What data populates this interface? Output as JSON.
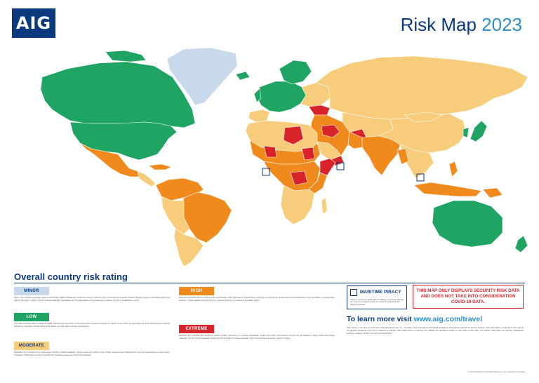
{
  "header": {
    "logo": "AIG",
    "title_main": "Risk Map",
    "title_year": "2023"
  },
  "section_heading": "Overall country risk rating",
  "legend": {
    "minor": {
      "label": "MINOR",
      "color": "#c7d9ea",
      "text_color": "#0b3a7e",
      "description": "Minor risk countries generally have a functionally stable political and economic system, with low risk of criminal and security threats. Routine travel is generally carried out without disruption. Visitors should observe standard precautions and remain aware of local laws and customs. Access to healthcare is good."
    },
    "low": {
      "label": "LOW",
      "color": "#1fa463",
      "text_color": "#ffffff",
      "description": "Low risk countries have a relatively stable political and economic environment with occasional periods of unrest. Crime rates are generally low and infrastructure functions effectively. Travellers should follow local advice and take basic security precautions."
    },
    "moderate": {
      "label": "MODERATE",
      "color": "#f7cd7b",
      "text_color": "#0b3a7e",
      "description": "Moderate risk countries may experience periodic political instability, social unrest and violent crime. Public services and infrastructure may be inconsistent in some areas. Travellers should plan journeys carefully and maintain awareness of the local situation."
    },
    "high": {
      "label": "HIGH",
      "color": "#f08a1c",
      "text_color": "#ffffff",
      "description": "High risk countries have a weak security environment, with high rates of violent crime, terrorism or civil unrest. Government and infrastructure may be unable to provide basic services. Travel requires careful planning, close monitoring of events and specialist advice."
    },
    "extreme": {
      "label": "EXTREME",
      "color": "#d8232a",
      "text_color": "#ffffff",
      "description": "Extreme risk countries are subject to armed conflict, terrorism or a severe breakdown of law and order. Government control may be absent in large areas and foreign nationals may be directly targeted. Travel should be deferred unless essential, with comprehensive security support in place."
    }
  },
  "maritime_piracy": {
    "label": "MARITIME PIRACY",
    "description": "Areas of concern in which acts of robbery or criminal violence are carried out against a ship or vessel for political and/or financial reasons."
  },
  "covid_notice": "THIS MAP ONLY DISPLAYS SECURITY RISK DATA AND DOES NOT TAKE INTO CONSIDERATION COVID-19 DATA.",
  "learn_more": {
    "prefix": "To learn more visit ",
    "url": "www.aig.com/travel"
  },
  "disclaimer": "AIG Travel, a member of American International Group, Inc., provides travel insurance and global assistance through its network of service centres. The information contained in this map is for general guidance only and is subject to change. AIG Travel does not accept any liability for decisions made on the basis of this map. For further information on security assistance services, please contact your AIG representative.",
  "copyright": "© 2023 American International Group, Inc. All rights reserved.",
  "colors": {
    "brand_navy": "#0b3a7e",
    "brand_blue": "#2f8fcf",
    "ocean": "#ffffff",
    "greenland": "#c7d9ea"
  }
}
